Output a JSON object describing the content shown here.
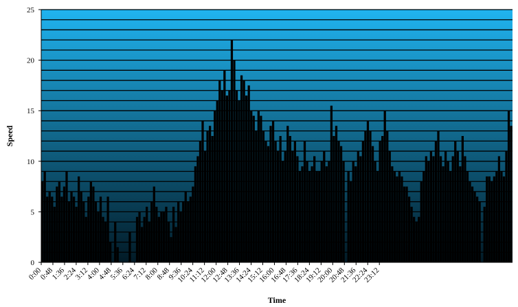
{
  "chart_data": {
    "type": "bar",
    "title": "",
    "xlabel": "Time",
    "ylabel": "Speed",
    "ylim": [
      0,
      25
    ],
    "yticks": [
      "0",
      "5",
      "10",
      "15",
      "20",
      "25"
    ],
    "xticks": [
      "0:00",
      "0:48",
      "1:36",
      "2:24",
      "3:12",
      "4:00",
      "4:48",
      "5:36",
      "6:24",
      "7:12",
      "8:00",
      "8:48",
      "9:36",
      "10:24",
      "11:12",
      "12:00",
      "12:48",
      "13:36",
      "14:24",
      "15:12",
      "16:00",
      "16:48",
      "17:36",
      "18:24",
      "19:12",
      "20:00",
      "20:48",
      "21:36",
      "22:24",
      "23:12"
    ],
    "grid": true,
    "legend": "none",
    "colors": {
      "bars": "#000000",
      "plot_top": "#20b4f0",
      "plot_bottom": "#021a26",
      "gridline": "#000000"
    },
    "x_step_minutes": 10,
    "values": [
      8.0,
      9.0,
      6.5,
      7.0,
      6.5,
      5.5,
      7.5,
      8.0,
      6.5,
      7.5,
      9.0,
      6.0,
      7.0,
      6.5,
      5.5,
      8.5,
      7.0,
      6.0,
      4.5,
      6.5,
      8.0,
      7.5,
      6.0,
      5.0,
      6.5,
      4.5,
      4.0,
      6.5,
      2.0,
      0.0,
      4.0,
      1.5,
      0.0,
      0.0,
      0.0,
      0.0,
      3.0,
      0.0,
      0.0,
      4.5,
      5.0,
      3.5,
      4.5,
      5.5,
      4.0,
      6.0,
      7.5,
      5.5,
      4.5,
      5.0,
      5.0,
      5.5,
      4.0,
      2.5,
      5.5,
      3.5,
      6.0,
      5.0,
      6.0,
      7.0,
      6.0,
      6.5,
      7.5,
      9.5,
      10.5,
      12.0,
      14.0,
      11.0,
      13.0,
      13.5,
      12.5,
      15.0,
      16.0,
      18.0,
      17.0,
      19.0,
      16.5,
      17.0,
      22.0,
      20.0,
      17.0,
      16.0,
      18.5,
      18.0,
      16.5,
      17.5,
      15.0,
      14.5,
      13.0,
      15.0,
      14.5,
      13.0,
      12.0,
      11.5,
      13.5,
      14.0,
      12.0,
      11.0,
      12.5,
      10.0,
      11.0,
      13.5,
      12.5,
      11.0,
      12.0,
      10.5,
      9.0,
      9.5,
      12.0,
      10.0,
      9.0,
      9.5,
      10.5,
      9.0,
      9.0,
      10.0,
      11.0,
      9.5,
      10.0,
      15.5,
      12.5,
      13.5,
      12.0,
      11.5,
      10.0,
      0.0,
      9.0,
      8.0,
      10.0,
      9.5,
      11.0,
      10.5,
      12.0,
      13.0,
      14.0,
      13.0,
      11.5,
      10.0,
      9.0,
      12.0,
      12.5,
      15.0,
      13.0,
      11.0,
      9.5,
      9.0,
      8.5,
      9.0,
      8.5,
      7.5,
      7.5,
      6.5,
      5.5,
      4.5,
      4.0,
      4.5,
      8.0,
      9.0,
      10.5,
      10.0,
      11.0,
      10.5,
      12.0,
      13.0,
      10.5,
      9.5,
      11.0,
      10.0,
      9.0,
      10.5,
      12.0,
      11.0,
      9.5,
      12.5,
      10.5,
      9.0,
      8.0,
      7.5,
      7.0,
      6.5,
      6.0,
      0.0,
      5.5,
      8.5,
      8.5,
      8.0,
      8.5,
      9.0,
      10.5,
      9.0,
      8.5,
      11.0,
      15.0,
      13.5
    ]
  }
}
